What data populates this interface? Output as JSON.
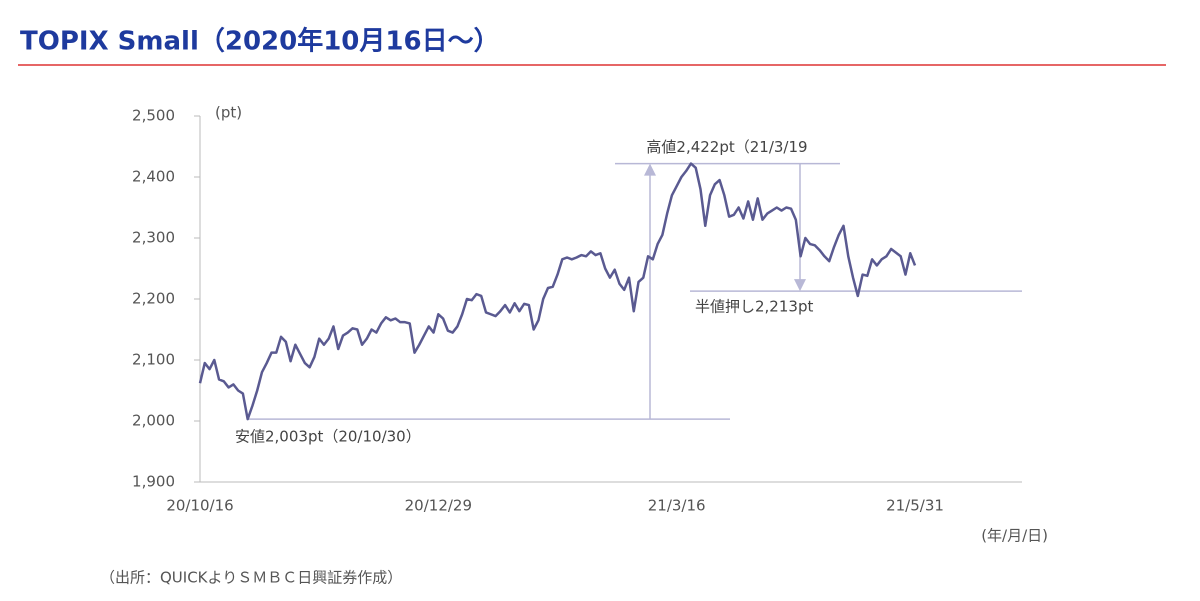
{
  "chart_data": {
    "type": "line",
    "title": "TOPIX Small（2020年10月16日～）",
    "y_label": "(pt)",
    "x_label": "(年/月/日)",
    "source": "（出所：QUICKよりＳＭＢＣ日興証券作成）",
    "categories": [
      "20/10/16",
      null,
      null,
      null,
      null,
      null,
      null,
      null,
      null,
      null,
      null,
      null,
      null,
      null,
      null,
      null,
      null,
      null,
      null,
      null,
      null,
      null,
      null,
      null,
      null,
      null,
      null,
      null,
      null,
      null,
      null,
      null,
      null,
      null,
      null,
      null,
      null,
      null,
      null,
      null,
      null,
      null,
      null,
      null,
      null,
      null,
      null,
      null,
      null,
      null,
      "20/12/29",
      null,
      null,
      null,
      null,
      null,
      null,
      null,
      null,
      null,
      null,
      null,
      null,
      null,
      null,
      null,
      null,
      null,
      null,
      null,
      null,
      null,
      null,
      null,
      null,
      null,
      null,
      null,
      null,
      null,
      null,
      null,
      null,
      null,
      null,
      null,
      null,
      null,
      null,
      null,
      null,
      null,
      null,
      null,
      null,
      null,
      null,
      null,
      null,
      null,
      "21/3/16",
      null,
      null,
      null,
      null,
      null,
      null,
      null,
      null,
      null,
      null,
      null,
      null,
      null,
      null,
      null,
      null,
      null,
      null,
      null,
      null,
      null,
      null,
      null,
      null,
      null,
      null,
      null,
      null,
      null,
      null,
      null,
      null,
      null,
      null,
      null,
      null,
      null,
      null,
      null,
      null,
      null,
      null,
      null,
      null,
      null,
      null,
      null,
      null,
      null,
      "21/5/31"
    ],
    "series": [
      {
        "name": "TOPIX Small",
        "color": "#5a5a91",
        "values": [
          2062,
          2095,
          2085,
          2100,
          2068,
          2065,
          2055,
          2060,
          2050,
          2045,
          2003,
          2025,
          2050,
          2080,
          2095,
          2112,
          2112,
          2138,
          2130,
          2098,
          2125,
          2110,
          2095,
          2088,
          2105,
          2135,
          2125,
          2135,
          2155,
          2118,
          2140,
          2145,
          2152,
          2150,
          2125,
          2135,
          2150,
          2145,
          2160,
          2170,
          2165,
          2168,
          2162,
          2162,
          2160,
          2112,
          2125,
          2140,
          2155,
          2145,
          2175,
          2168,
          2148,
          2145,
          2155,
          2175,
          2200,
          2198,
          2208,
          2205,
          2178,
          2175,
          2172,
          2180,
          2190,
          2178,
          2193,
          2180,
          2192,
          2190,
          2150,
          2165,
          2200,
          2218,
          2220,
          2240,
          2265,
          2268,
          2265,
          2268,
          2272,
          2270,
          2278,
          2272,
          2275,
          2250,
          2235,
          2248,
          2225,
          2215,
          2235,
          2180,
          2228,
          2235,
          2270,
          2265,
          2290,
          2305,
          2340,
          2370,
          2385,
          2400,
          2410,
          2422,
          2415,
          2380,
          2320,
          2370,
          2388,
          2395,
          2370,
          2335,
          2338,
          2350,
          2332,
          2360,
          2330,
          2365,
          2330,
          2340,
          2345,
          2350,
          2345,
          2350,
          2348,
          2330,
          2270,
          2300,
          2290,
          2288,
          2280,
          2270,
          2262,
          2285,
          2305,
          2320,
          2270,
          2235,
          2205,
          2240,
          2238,
          2265,
          2255,
          2265,
          2270,
          2282,
          2276,
          2270,
          2240,
          2275,
          2255
        ]
      }
    ],
    "ylim": [
      1900,
      2500
    ],
    "yticks": [
      {
        "value": 1900,
        "label": "1,900"
      },
      {
        "value": 2000,
        "label": "2,000"
      },
      {
        "value": 2100,
        "label": "2,100"
      },
      {
        "value": 2200,
        "label": "2,200"
      },
      {
        "value": 2300,
        "label": "2,300"
      },
      {
        "value": 2400,
        "label": "2,400"
      },
      {
        "value": 2500,
        "label": "2,500"
      }
    ],
    "annotations": [
      {
        "text": "安値2,003pt（20/10/30）",
        "value": 2003
      },
      {
        "text": "高値2,422pt（21/3/19",
        "value": 2422
      },
      {
        "text": "半値押し2,213pt",
        "value": 2213
      }
    ],
    "ref_color": "#b8b8d6"
  }
}
